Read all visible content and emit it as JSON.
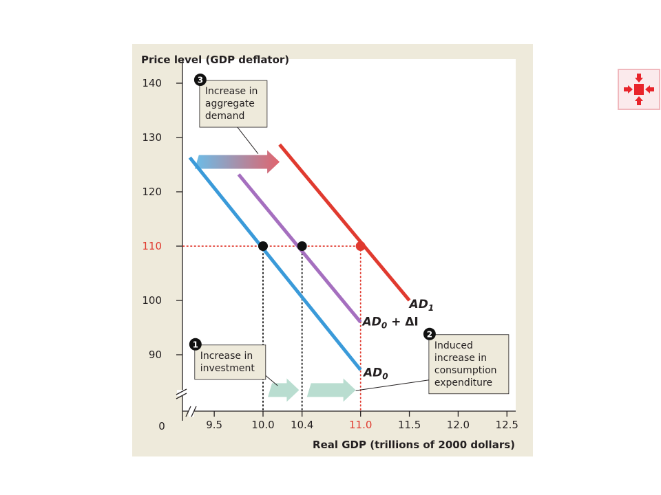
{
  "chart_data": {
    "type": "line",
    "title": "",
    "xlabel": "Real GDP (trillions of 2000 dollars)",
    "ylabel": "Price level (GDP deflator)",
    "xlim": [
      9.1,
      12.6
    ],
    "ylim": [
      80,
      143
    ],
    "grid": false,
    "x_ticks": [
      {
        "value": 9.5,
        "label": "9.5",
        "color": "#231f20"
      },
      {
        "value": 10.0,
        "label": "10.0",
        "color": "#231f20"
      },
      {
        "value": 10.4,
        "label": "10.4",
        "color": "#231f20"
      },
      {
        "value": 11.0,
        "label": "11.0",
        "color": "#e03a2f"
      },
      {
        "value": 11.5,
        "label": "11.5",
        "color": "#231f20"
      },
      {
        "value": 12.0,
        "label": "12.0",
        "color": "#231f20"
      },
      {
        "value": 12.5,
        "label": "12.5",
        "color": "#231f20"
      }
    ],
    "y_ticks": [
      {
        "value": 90,
        "label": "90",
        "color": "#231f20"
      },
      {
        "value": 100,
        "label": "100",
        "color": "#231f20"
      },
      {
        "value": 110,
        "label": "110",
        "color": "#e03a2f"
      },
      {
        "value": 120,
        "label": "120",
        "color": "#231f20"
      },
      {
        "value": 130,
        "label": "130",
        "color": "#231f20"
      },
      {
        "value": 140,
        "label": "140",
        "color": "#231f20"
      }
    ],
    "origin_label": "0",
    "series": [
      {
        "name": "AD0",
        "color": "#3a9ad9",
        "points": [
          [
            9.25,
            126.3
          ],
          [
            11.0,
            87.2
          ]
        ],
        "label_main": "AD",
        "label_sub": "0",
        "label_suffix": "",
        "label_at": [
          11.03,
          86.0
        ]
      },
      {
        "name": "AD0 + ΔI",
        "color": "#a56fbf",
        "points": [
          [
            9.75,
            123.2
          ],
          [
            11.0,
            96.0
          ]
        ],
        "label_main": "AD",
        "label_sub": "0",
        "label_suffix": " + ΔI",
        "label_at": [
          11.02,
          95.4
        ]
      },
      {
        "name": "AD1",
        "color": "#e03a2f",
        "points": [
          [
            10.17,
            128.7
          ],
          [
            11.5,
            100.0
          ]
        ],
        "label_main": "AD",
        "label_sub": "1",
        "label_suffix": "",
        "label_at": [
          11.5,
          98.6
        ]
      }
    ],
    "reference_level": 110,
    "equilibrium_points": [
      {
        "x": 10.0,
        "y": 110,
        "color": "#111111"
      },
      {
        "x": 10.4,
        "y": 110,
        "color": "#111111"
      },
      {
        "x": 11.0,
        "y": 110,
        "color": "#e03a2f"
      }
    ],
    "shift_arrows": [
      {
        "from": [
          9.3,
          125.5
        ],
        "to": [
          10.17,
          125.5
        ],
        "colors": [
          "#6bbde8",
          "#e0646e"
        ]
      },
      {
        "from": [
          10.05,
          83.5
        ],
        "to": [
          10.37,
          83.5
        ],
        "colors": [
          "#b9ddd0",
          "#b9ddd0"
        ]
      },
      {
        "from": [
          10.45,
          83.5
        ],
        "to": [
          10.95,
          83.5
        ],
        "colors": [
          "#b9ddd0",
          "#b9ddd0"
        ]
      }
    ],
    "annotations": [
      {
        "number": "3",
        "lines": [
          "Increase in",
          "aggregate",
          "demand"
        ],
        "anchor": [
          9.35,
          140.5
        ],
        "pointer_to": [
          9.95,
          127.0
        ]
      },
      {
        "number": "1",
        "lines": [
          "Increase in",
          "investment"
        ],
        "anchor": [
          9.3,
          91.8
        ],
        "pointer_to": [
          10.15,
          84.3
        ]
      },
      {
        "number": "2",
        "lines": [
          "Induced",
          "increase in",
          "consumption",
          "expenditure"
        ],
        "anchor": [
          11.7,
          93.7
        ],
        "pointer_to": [
          10.95,
          83.4
        ]
      }
    ]
  },
  "nav_button": {
    "icon": "collapse-arrows-icon",
    "color": "#e8242b"
  }
}
